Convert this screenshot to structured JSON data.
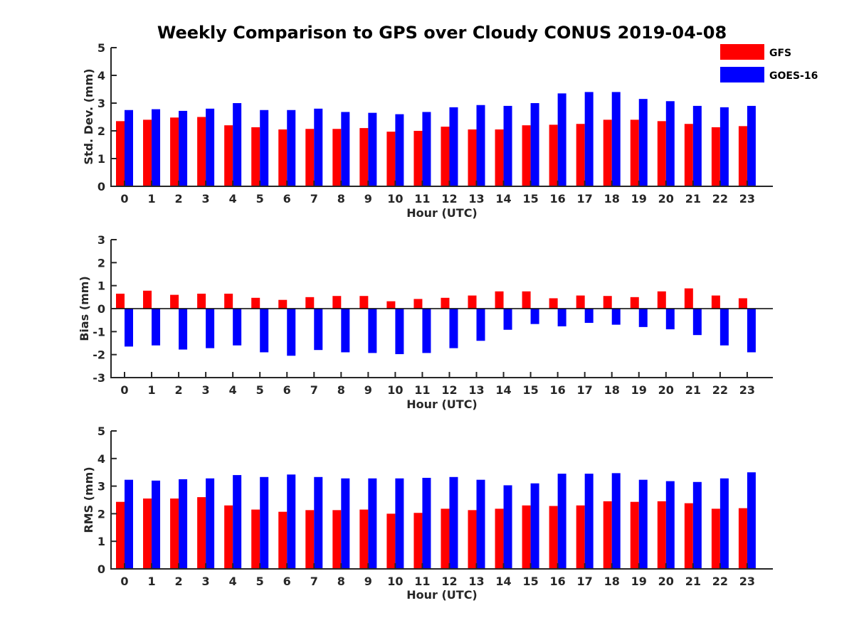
{
  "title": "Weekly Comparison to GPS over Cloudy CONUS 2019-04-08",
  "legend": [
    {
      "name": "GFS",
      "color": "#ff0000"
    },
    {
      "name": "GOES-16",
      "color": "#0000ff"
    }
  ],
  "chart_data": [
    {
      "type": "bar",
      "categories": [
        "0",
        "1",
        "2",
        "3",
        "4",
        "5",
        "6",
        "7",
        "8",
        "9",
        "10",
        "11",
        "12",
        "13",
        "14",
        "15",
        "16",
        "17",
        "18",
        "19",
        "20",
        "21",
        "22",
        "23"
      ],
      "xlabel": "Hour (UTC)",
      "ylabel": "Std. Dev. (mm)",
      "ylim": [
        0,
        5
      ],
      "yticks": [
        "0",
        "1",
        "2",
        "3",
        "4",
        "5"
      ],
      "legend_position": "top-right",
      "series": [
        {
          "name": "GFS",
          "color": "#ff0000",
          "values": [
            2.35,
            2.4,
            2.48,
            2.5,
            2.2,
            2.13,
            2.05,
            2.07,
            2.07,
            2.1,
            1.97,
            2.0,
            2.15,
            2.05,
            2.05,
            2.2,
            2.22,
            2.25,
            2.4,
            2.4,
            2.35,
            2.25,
            2.13,
            2.17
          ]
        },
        {
          "name": "GOES-16",
          "color": "#0000ff",
          "values": [
            2.75,
            2.78,
            2.72,
            2.8,
            3.0,
            2.75,
            2.75,
            2.8,
            2.68,
            2.65,
            2.6,
            2.68,
            2.85,
            2.93,
            2.9,
            3.0,
            3.35,
            3.4,
            3.4,
            3.15,
            3.07,
            2.9,
            2.85,
            2.9
          ]
        }
      ]
    },
    {
      "type": "bar",
      "categories": [
        "0",
        "1",
        "2",
        "3",
        "4",
        "5",
        "6",
        "7",
        "8",
        "9",
        "10",
        "11",
        "12",
        "13",
        "14",
        "15",
        "16",
        "17",
        "18",
        "19",
        "20",
        "21",
        "22",
        "23"
      ],
      "xlabel": "Hour (UTC)",
      "ylabel": "Bias (mm)",
      "ylim": [
        -3,
        3
      ],
      "yticks": [
        "-3",
        "-2",
        "-1",
        "0",
        "1",
        "2",
        "3"
      ],
      "series": [
        {
          "name": "GFS",
          "color": "#ff0000",
          "values": [
            0.65,
            0.78,
            0.6,
            0.65,
            0.65,
            0.47,
            0.38,
            0.5,
            0.55,
            0.55,
            0.32,
            0.42,
            0.47,
            0.57,
            0.75,
            0.75,
            0.45,
            0.57,
            0.55,
            0.5,
            0.75,
            0.88,
            0.57,
            0.45
          ]
        },
        {
          "name": "GOES-16",
          "color": "#0000ff",
          "values": [
            -1.65,
            -1.6,
            -1.78,
            -1.72,
            -1.6,
            -1.9,
            -2.05,
            -1.8,
            -1.9,
            -1.93,
            -1.98,
            -1.93,
            -1.72,
            -1.4,
            -0.92,
            -0.67,
            -0.77,
            -0.62,
            -0.7,
            -0.8,
            -0.9,
            -1.15,
            -1.6,
            -1.9
          ]
        }
      ]
    },
    {
      "type": "bar",
      "categories": [
        "0",
        "1",
        "2",
        "3",
        "4",
        "5",
        "6",
        "7",
        "8",
        "9",
        "10",
        "11",
        "12",
        "13",
        "14",
        "15",
        "16",
        "17",
        "18",
        "19",
        "20",
        "21",
        "22",
        "23"
      ],
      "xlabel": "Hour (UTC)",
      "ylabel": "RMS (mm)",
      "ylim": [
        0,
        5
      ],
      "yticks": [
        "0",
        "1",
        "2",
        "3",
        "4",
        "5"
      ],
      "series": [
        {
          "name": "GFS",
          "color": "#ff0000",
          "values": [
            2.43,
            2.55,
            2.55,
            2.6,
            2.3,
            2.15,
            2.07,
            2.13,
            2.13,
            2.15,
            2.0,
            2.03,
            2.18,
            2.13,
            2.18,
            2.3,
            2.28,
            2.3,
            2.45,
            2.43,
            2.45,
            2.38,
            2.18,
            2.2
          ]
        },
        {
          "name": "GOES-16",
          "color": "#0000ff",
          "values": [
            3.23,
            3.2,
            3.25,
            3.28,
            3.4,
            3.33,
            3.42,
            3.33,
            3.28,
            3.28,
            3.28,
            3.3,
            3.33,
            3.23,
            3.03,
            3.1,
            3.45,
            3.45,
            3.47,
            3.23,
            3.18,
            3.15,
            3.28,
            3.5
          ]
        }
      ]
    }
  ]
}
